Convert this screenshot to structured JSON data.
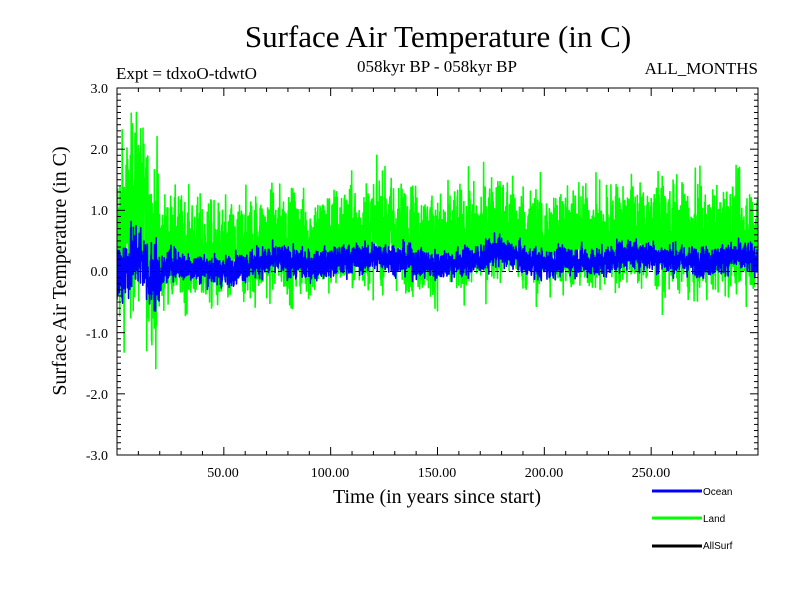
{
  "chart_data": {
    "type": "line",
    "title": "Surface Air Temperature (in C)",
    "subtitle_left": "Expt = tdxoO-tdwtO",
    "subtitle_center": "058kyr BP - 058kyr BP",
    "subtitle_right": "ALL_MONTHS",
    "xlabel": "Time (in years since start)",
    "ylabel": "Surface Air Temperature (in C)",
    "xlim": [
      0,
      300
    ],
    "ylim": [
      -3.0,
      3.0
    ],
    "x_ticks": [
      "50.00",
      "100.00",
      "150.00",
      "200.00",
      "250.00"
    ],
    "y_ticks": [
      "-3.0",
      "-2.0",
      "-1.0",
      "0.0",
      "1.0",
      "2.0",
      "3.0"
    ],
    "zero_line": true,
    "legend_position": "bottom-right",
    "series": [
      {
        "name": "Ocean",
        "color": "#0000ff",
        "x": [
          0,
          5,
          10,
          15,
          20,
          25,
          30,
          40,
          50,
          60,
          75,
          90,
          100,
          110,
          125,
          140,
          150,
          160,
          170,
          178,
          190,
          200,
          210,
          225,
          240,
          250,
          260,
          275,
          290,
          300
        ],
        "values": [
          -0.05,
          0.1,
          0.3,
          -0.05,
          -0.1,
          0.15,
          0.1,
          0.05,
          0.0,
          0.1,
          0.2,
          0.1,
          0.15,
          0.2,
          0.25,
          0.15,
          0.1,
          0.15,
          0.2,
          0.35,
          0.2,
          0.1,
          0.2,
          0.15,
          0.3,
          0.25,
          0.2,
          0.15,
          0.25,
          0.2
        ],
        "min": -0.9,
        "max": 0.9
      },
      {
        "name": "Land",
        "color": "#00ff00",
        "x": [
          0,
          5,
          10,
          15,
          20,
          25,
          30,
          40,
          50,
          60,
          75,
          90,
          100,
          110,
          125,
          140,
          150,
          160,
          170,
          178,
          190,
          200,
          210,
          225,
          240,
          250,
          260,
          275,
          290,
          300
        ],
        "values": [
          0.4,
          0.8,
          1.0,
          0.5,
          0.3,
          0.4,
          0.35,
          0.3,
          0.2,
          0.35,
          0.5,
          0.4,
          0.5,
          0.55,
          0.7,
          0.5,
          0.4,
          0.5,
          0.55,
          0.75,
          0.55,
          0.45,
          0.55,
          0.5,
          0.65,
          0.6,
          0.55,
          0.45,
          0.6,
          0.5
        ],
        "min": -2.3,
        "max": 2.9
      },
      {
        "name": "AllSurf",
        "color": "#000000"
      }
    ]
  }
}
